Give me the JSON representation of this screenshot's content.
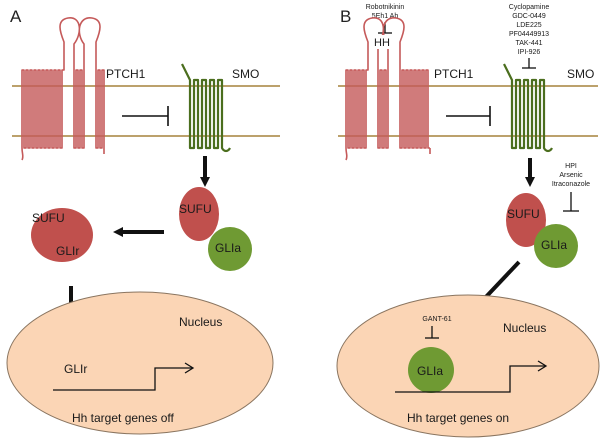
{
  "panel_a": {
    "letter": "A",
    "ptch1": "PTCH1",
    "smo": "SMO",
    "sufu_free": "SUFU",
    "gli_r": "GLIr",
    "sufu_bound": "SUFU",
    "gli_a": "GLIa",
    "nucleus": "Nucleus",
    "gli_r_nucleus": "GLIr",
    "target_genes": "Hh target genes off"
  },
  "panel_b": {
    "letter": "B",
    "ptch1_inhibitors": [
      "Robotnikinin",
      "5Eh1 Ab"
    ],
    "hh": "HH",
    "smo_inhibitors": [
      "Cyclopamine",
      "GDC-0449",
      "LDE225",
      "PF04449913",
      "TAK-441",
      "IPI-926"
    ],
    "ptch1": "PTCH1",
    "smo": "SMO",
    "gli_inhibitors": [
      "HPI",
      "Arsenic",
      "Itraconazole"
    ],
    "sufu_bound": "SUFU",
    "gli_a": "GLIa",
    "nucleus": "Nucleus",
    "nuclear_inhibitor": "GANT-61",
    "gli_a_nucleus": "GLIa",
    "target_genes": "Hh target genes on"
  },
  "colors": {
    "membrane": "#a6823c",
    "ptch1": "#c55a5a",
    "smo": "#4b6e1e",
    "sufu": "#c0504d",
    "gli": "#6f9a33",
    "nucleus_fill": "#fbd5b5",
    "nucleus_stroke": "#8a7560",
    "arrow": "#111111"
  }
}
